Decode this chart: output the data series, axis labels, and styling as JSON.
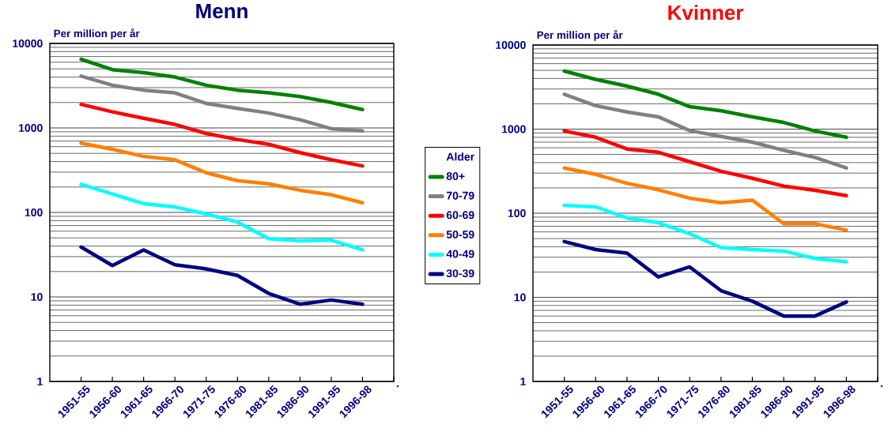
{
  "chart_data": [
    {
      "type": "line",
      "title": "Menn",
      "ylabel": "Per million per år",
      "legend_title": "Alder",
      "legend": "right",
      "log": true,
      "grid": "y",
      "ylim": [
        1,
        10000
      ],
      "yticks": [
        1,
        10,
        100,
        1000,
        10000
      ],
      "categories": [
        "1951-55",
        "1956-60",
        "1961-65",
        "1966-70",
        "1971-75",
        "1976-80",
        "1981-85",
        "1986-90",
        "1991-95",
        "1996-98",
        "."
      ],
      "series": [
        {
          "name": "80+",
          "color": "#008000",
          "values": [
            6500,
            4900,
            4500,
            4000,
            3200,
            2800,
            2600,
            2350,
            2000,
            1650,
            null
          ]
        },
        {
          "name": "70-79",
          "color": "#808080",
          "values": [
            4100,
            3200,
            2800,
            2600,
            1950,
            1700,
            1500,
            1250,
            980,
            920,
            null
          ]
        },
        {
          "name": "60-69",
          "color": "#ff0000",
          "values": [
            1900,
            1550,
            1300,
            1100,
            860,
            730,
            640,
            510,
            420,
            355,
            null
          ]
        },
        {
          "name": "50-59",
          "color": "#ff8000",
          "values": [
            660,
            560,
            460,
            420,
            295,
            238,
            218,
            183,
            162,
            130,
            null
          ]
        },
        {
          "name": "40-49",
          "color": "#00ffff",
          "values": [
            215,
            165,
            127,
            116,
            96,
            77,
            49,
            46,
            47,
            36,
            null
          ]
        },
        {
          "name": "30-39",
          "color": "#000080",
          "values": [
            39,
            23.5,
            36,
            24,
            21.5,
            18,
            11,
            8.2,
            9.2,
            8.2,
            null
          ]
        }
      ]
    },
    {
      "type": "line",
      "title": "Kvinner",
      "ylabel": "Per million per år",
      "log": true,
      "grid": "y",
      "ylim": [
        1,
        10000
      ],
      "yticks": [
        1,
        10,
        100,
        1000,
        10000
      ],
      "categories": [
        "1951-55",
        "1956-60",
        "1961-65",
        "1966-70",
        "1971-75",
        "1976-80",
        "1981-85",
        "1986-90",
        "1991-95",
        "1996-98",
        "."
      ],
      "series": [
        {
          "color": "#008000",
          "values": [
            4900,
            3900,
            3250,
            2600,
            1850,
            1650,
            1400,
            1200,
            950,
            800,
            null
          ]
        },
        {
          "color": "#808080",
          "values": [
            2600,
            1900,
            1600,
            1400,
            960,
            820,
            700,
            560,
            460,
            345,
            null
          ]
        },
        {
          "color": "#ff0000",
          "values": [
            950,
            800,
            580,
            530,
            410,
            315,
            260,
            210,
            187,
            162,
            null
          ]
        },
        {
          "color": "#ff8000",
          "values": [
            345,
            290,
            227,
            190,
            151,
            133,
            143,
            75,
            75,
            63,
            null
          ]
        },
        {
          "color": "#00ffff",
          "values": [
            124,
            119,
            88,
            77,
            57,
            39,
            37,
            35.5,
            29,
            26.5,
            null
          ]
        },
        {
          "color": "#000080",
          "values": [
            46,
            37,
            33.5,
            17.5,
            23,
            12,
            9,
            6,
            6,
            8.8,
            null
          ]
        }
      ]
    }
  ]
}
